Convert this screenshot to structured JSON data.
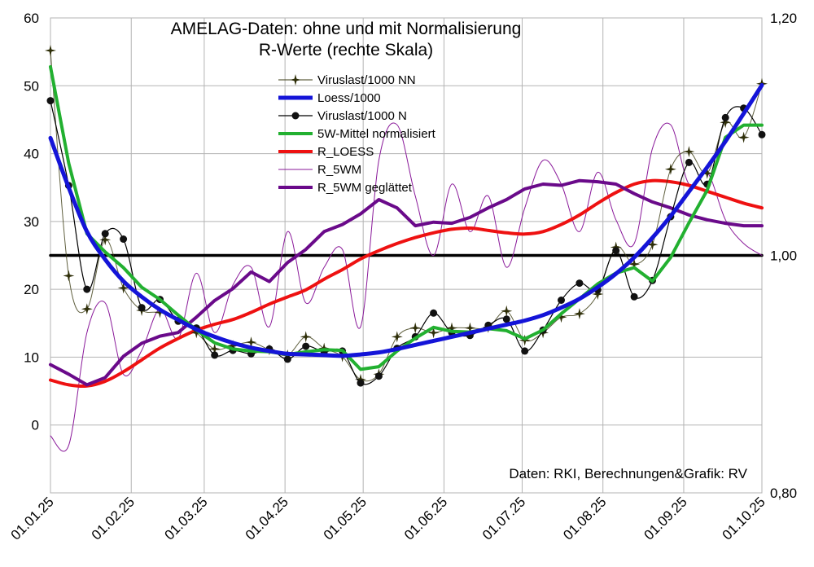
{
  "chart_data": {
    "type": "line",
    "title": "AMELAG-Daten: ohne und mit Normalisierung",
    "subtitle": "R-Werte (rechte Skala)",
    "credit": "Daten: RKI, Berechnungen&Grafik: RV",
    "x_tick_labels": [
      "01.01.25",
      "01.02.25",
      "01.03.25",
      "01.04.25",
      "01.05.25",
      "01.06.25",
      "01.07.25",
      "01.08.25",
      "01.09.25",
      "01.10.25"
    ],
    "y_left": {
      "ylim": [
        -10,
        60
      ],
      "ticks": [
        "0",
        "10",
        "20",
        "30",
        "40",
        "50",
        "60"
      ]
    },
    "y_right": {
      "ylim": [
        0.8,
        1.2
      ],
      "ticks": [
        "0,80",
        "1,00",
        "1,20"
      ]
    },
    "grid": true,
    "legend_position": "top-center",
    "series": [
      {
        "name": "Viruslast/1000 NN",
        "axis": "left",
        "color": "#3a3a10",
        "marker": "star",
        "x": [
          0,
          7,
          14,
          21,
          28,
          35,
          42,
          49,
          56,
          63,
          70,
          77,
          84,
          91,
          98,
          105,
          112,
          119,
          126,
          133,
          140,
          147,
          154,
          161,
          168,
          175,
          182,
          189,
          196,
          203,
          210,
          217,
          224,
          231,
          238,
          245,
          252,
          259,
          266,
          273
        ],
        "values": [
          55.2,
          22.0,
          17.1,
          27.3,
          20.2,
          16.9,
          16.6,
          15.6,
          13.6,
          11.2,
          11.7,
          12.2,
          11.1,
          10.3,
          13.0,
          11.3,
          10.1,
          6.7,
          7.5,
          13.0,
          14.3,
          13.6,
          14.3,
          14.3,
          14.4,
          16.8,
          12.5,
          13.6,
          15.9,
          16.4,
          19.3,
          26.2,
          23.7,
          26.6,
          37.7,
          40.3,
          37.1,
          44.6,
          42.4,
          50.3
        ]
      },
      {
        "name": "Loess/1000",
        "axis": "left",
        "color": "#1414d8",
        "marker": "none",
        "x": [
          0,
          7,
          14,
          21,
          28,
          35,
          42,
          49,
          56,
          63,
          70,
          77,
          84,
          91,
          98,
          105,
          112,
          119,
          126,
          133,
          140,
          147,
          154,
          161,
          168,
          175,
          182,
          189,
          196,
          203,
          210,
          217,
          224,
          231,
          238,
          245,
          252,
          259,
          266,
          273
        ],
        "values": [
          42.3,
          35.0,
          28.5,
          24.4,
          21.2,
          18.9,
          17.0,
          15.5,
          14.1,
          13.0,
          12.1,
          11.4,
          10.9,
          10.5,
          10.4,
          10.3,
          10.2,
          10.4,
          10.7,
          11.2,
          11.8,
          12.4,
          13.0,
          13.6,
          14.2,
          14.8,
          15.4,
          16.2,
          17.3,
          18.6,
          20.3,
          22.3,
          24.7,
          27.6,
          30.8,
          34.4,
          38.0,
          41.8,
          45.9,
          50.1
        ]
      },
      {
        "name": "Viruslast/1000 N",
        "axis": "left",
        "color": "#000000",
        "marker": "dot",
        "x": [
          0,
          7,
          14,
          21,
          28,
          35,
          42,
          49,
          56,
          63,
          70,
          77,
          84,
          91,
          98,
          105,
          112,
          119,
          126,
          133,
          140,
          147,
          154,
          161,
          168,
          175,
          182,
          189,
          196,
          203,
          210,
          217,
          224,
          231,
          238,
          245,
          252,
          259,
          266,
          273
        ],
        "values": [
          47.8,
          35.3,
          20.0,
          28.2,
          27.4,
          17.3,
          18.5,
          15.3,
          14.3,
          10.3,
          11.0,
          10.5,
          11.2,
          9.7,
          11.6,
          10.8,
          10.9,
          6.2,
          7.2,
          11.3,
          13.0,
          16.5,
          13.6,
          13.2,
          14.7,
          15.6,
          10.9,
          14.0,
          18.4,
          20.9,
          19.9,
          25.7,
          18.9,
          21.3,
          30.7,
          38.7,
          35.5,
          45.3,
          46.7,
          42.8
        ]
      },
      {
        "name": "5W-Mittel normalisiert",
        "axis": "left",
        "color": "#22b030",
        "marker": "none",
        "x": [
          0,
          7,
          14,
          21,
          28,
          35,
          42,
          49,
          56,
          63,
          70,
          77,
          84,
          91,
          98,
          105,
          112,
          119,
          126,
          133,
          140,
          147,
          154,
          161,
          168,
          175,
          182,
          189,
          196,
          203,
          210,
          217,
          224,
          231,
          238,
          245,
          252,
          259,
          266,
          273
        ],
        "values": [
          52.8,
          38.6,
          28.2,
          25.5,
          23.2,
          20.3,
          18.5,
          16.2,
          14.0,
          12.1,
          11.2,
          10.9,
          10.8,
          10.4,
          10.8,
          11.1,
          11.0,
          8.2,
          8.6,
          10.9,
          12.8,
          14.4,
          13.8,
          13.7,
          14.2,
          13.9,
          12.7,
          14.0,
          16.4,
          18.6,
          20.8,
          22.4,
          23.2,
          21.2,
          24.7,
          29.8,
          34.6,
          42.4,
          44.2,
          44.2
        ]
      },
      {
        "name": "R_LOESS",
        "axis": "right",
        "color": "#ee1111",
        "marker": "none",
        "x": [
          0,
          7,
          14,
          21,
          28,
          35,
          42,
          49,
          56,
          63,
          70,
          77,
          84,
          91,
          98,
          105,
          112,
          119,
          126,
          133,
          140,
          147,
          154,
          161,
          168,
          175,
          182,
          189,
          196,
          203,
          210,
          217,
          224,
          231,
          238,
          245,
          252,
          259,
          266,
          273
        ],
        "values": [
          0.895,
          0.891,
          0.89,
          0.894,
          0.902,
          0.912,
          0.922,
          0.93,
          0.937,
          0.942,
          0.946,
          0.952,
          0.959,
          0.965,
          0.971,
          0.98,
          0.988,
          0.997,
          1.004,
          1.01,
          1.015,
          1.019,
          1.022,
          1.023,
          1.021,
          1.019,
          1.018,
          1.02,
          1.026,
          1.034,
          1.044,
          1.053,
          1.06,
          1.063,
          1.062,
          1.059,
          1.054,
          1.049,
          1.044,
          1.04
        ]
      },
      {
        "name": "R_5WM",
        "axis": "right",
        "color": "#8a1a9a",
        "marker": "none",
        "x": [
          0,
          7,
          14,
          21,
          28,
          35,
          42,
          49,
          56,
          63,
          70,
          77,
          84,
          91,
          98,
          105,
          112,
          119,
          126,
          133,
          140,
          147,
          154,
          161,
          168,
          175,
          182,
          189,
          196,
          203,
          210,
          217,
          224,
          231,
          238,
          245,
          252,
          259,
          266,
          273
        ],
        "values": [
          0.848,
          0.84,
          0.935,
          0.96,
          0.9,
          0.92,
          0.955,
          0.93,
          0.985,
          0.935,
          0.975,
          0.99,
          0.94,
          1.02,
          0.96,
          0.99,
          1.005,
          0.94,
          1.08,
          1.11,
          1.05,
          1.0,
          1.06,
          1.02,
          1.05,
          0.99,
          1.04,
          1.08,
          1.06,
          1.02,
          1.07,
          1.03,
          1.01,
          1.09,
          1.11,
          1.06,
          1.07,
          1.03,
          1.01,
          1.0
        ]
      },
      {
        "name": "R_5WM geglättet",
        "axis": "right",
        "color": "#6a0a8a",
        "marker": "none",
        "x": [
          0,
          7,
          14,
          21,
          28,
          35,
          42,
          49,
          56,
          63,
          70,
          77,
          84,
          91,
          98,
          105,
          112,
          119,
          126,
          133,
          140,
          147,
          154,
          161,
          168,
          175,
          182,
          189,
          196,
          203,
          210,
          217,
          224,
          231,
          238,
          245,
          252,
          259,
          266,
          273
        ],
        "values": [
          0.908,
          0.9,
          0.891,
          0.897,
          0.915,
          0.926,
          0.932,
          0.935,
          0.948,
          0.962,
          0.972,
          0.986,
          0.978,
          0.994,
          1.005,
          1.02,
          1.026,
          1.035,
          1.047,
          1.04,
          1.025,
          1.028,
          1.027,
          1.032,
          1.04,
          1.047,
          1.056,
          1.06,
          1.059,
          1.063,
          1.062,
          1.06,
          1.052,
          1.045,
          1.04,
          1.034,
          1.03,
          1.027,
          1.025,
          1.025
        ]
      },
      {
        "name": "",
        "axis": "right",
        "color": "#000000",
        "marker": "none",
        "x": [
          0,
          273
        ],
        "values": [
          1.0,
          1.0
        ]
      }
    ]
  }
}
